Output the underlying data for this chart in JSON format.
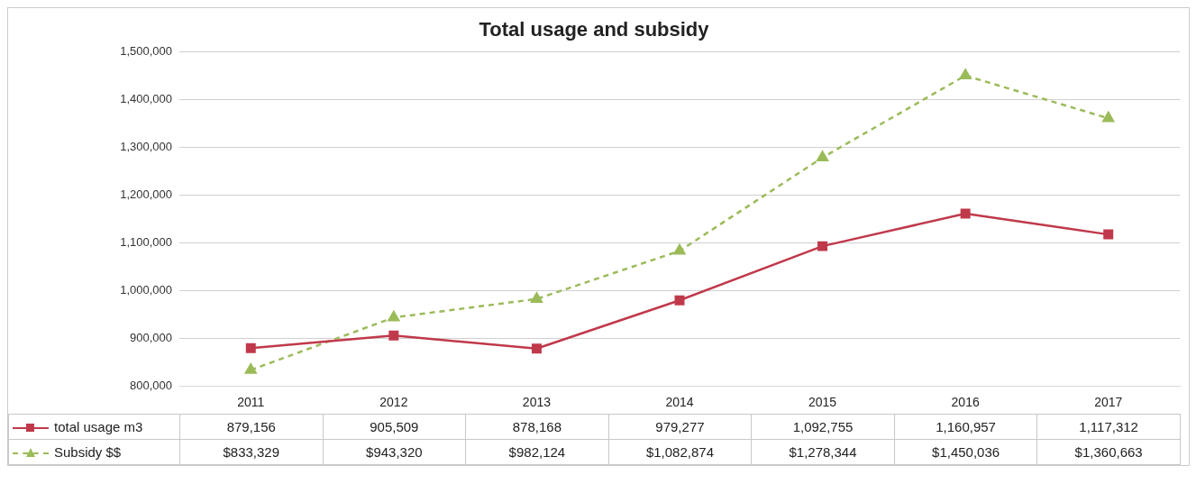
{
  "chart_data": {
    "type": "line",
    "title": "Total usage and subsidy",
    "categories": [
      "2011",
      "2012",
      "2013",
      "2014",
      "2015",
      "2016",
      "2017"
    ],
    "series": [
      {
        "name": "total usage m3",
        "color": "#c0394b",
        "marker": "square",
        "line_style": "solid",
        "values": [
          879156,
          905509,
          878168,
          979277,
          1092755,
          1160957,
          1117312
        ],
        "value_labels": [
          "879,156",
          "905,509",
          "878,168",
          "979,277",
          "1,092,755",
          "1,160,957",
          "1,117,312"
        ]
      },
      {
        "name": "Subsidy $$",
        "color": "#9bbb59",
        "marker": "triangle",
        "line_style": "dashed",
        "values": [
          833329,
          943320,
          982124,
          1082874,
          1278344,
          1450036,
          1360663
        ],
        "value_labels": [
          "$833,329",
          "$943,320",
          "$982,124",
          "$1,082,874",
          "$1,278,344",
          "$1,450,036",
          "$1,360,663"
        ]
      }
    ],
    "ylim": [
      800000,
      1500000
    ],
    "yticks": [
      {
        "value": 800000,
        "label": "800,000"
      },
      {
        "value": 900000,
        "label": "900,000"
      },
      {
        "value": 1000000,
        "label": "1,000,000"
      },
      {
        "value": 1100000,
        "label": "1,100,000"
      },
      {
        "value": 1200000,
        "label": "1,200,000"
      },
      {
        "value": 1300000,
        "label": "1,300,000"
      },
      {
        "value": 1400000,
        "label": "1,400,000"
      },
      {
        "value": 1500000,
        "label": "1,500,000"
      }
    ],
    "grid": "y",
    "legend": "bottom"
  }
}
